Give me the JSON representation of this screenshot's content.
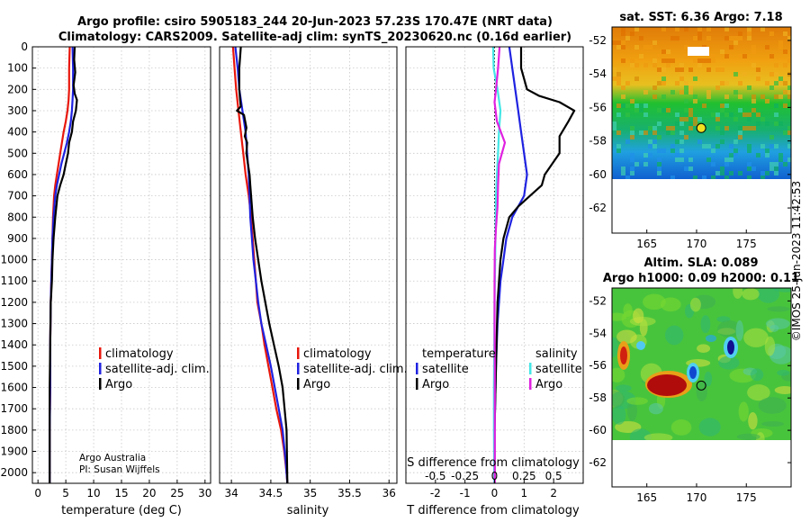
{
  "title": {
    "line1": "Argo profile: csiro 5905183_244 20-Jun-2023 57.23S 170.47E (NRT data)",
    "line2": "Climatology: CARS2009. Satellite-adj clim: synTS_20230620.nc (0.16d earlier)"
  },
  "credits": {
    "line1": "Argo Australia",
    "line2": "PI: Susan Wijffels",
    "stamp": "©IMOS 25-Jun-2023 11:42:53"
  },
  "colors": {
    "climatology": "#e8170c",
    "satellite": "#1f22e0",
    "argo": "#000000",
    "sat_salinity": "#44e6e6",
    "argo_salinity": "#e020e0"
  },
  "chart_data": [
    {
      "type": "line",
      "panel": "temperature",
      "xlabel": "temperature (deg C)",
      "xlim": [
        -1,
        31
      ],
      "ylim": [
        0,
        2050
      ],
      "y_axis": "depth, increasing downward",
      "xticks": [
        "0",
        "5",
        "10",
        "15",
        "20",
        "25",
        "30"
      ],
      "xtick_values": [
        0,
        5,
        10,
        15,
        20,
        25,
        30
      ],
      "yticks": [
        "0",
        "100",
        "200",
        "300",
        "400",
        "500",
        "600",
        "700",
        "800",
        "900",
        "1000",
        "1100",
        "1200",
        "1300",
        "1400",
        "1500",
        "1600",
        "1700",
        "1800",
        "1900",
        "2000"
      ],
      "ytick_values": [
        0,
        100,
        200,
        300,
        400,
        500,
        600,
        700,
        800,
        900,
        1000,
        1100,
        1200,
        1300,
        1400,
        1500,
        1600,
        1700,
        1800,
        1900,
        2000
      ],
      "grid": true,
      "legend": [
        "climatology",
        "satellite-adj. clim.",
        "Argo"
      ],
      "series": [
        {
          "name": "climatology",
          "color": "#e8170c",
          "x": [
            5.7,
            5.6,
            5.6,
            5.5,
            5.3,
            5.0,
            4.6,
            4.3,
            4.0,
            3.7,
            3.4,
            3.1,
            2.9,
            2.7,
            2.6,
            2.5,
            2.4,
            2.3,
            2.2,
            2.2,
            2.1,
            2.1,
            2.1
          ],
          "y": [
            0,
            100,
            200,
            250,
            300,
            350,
            400,
            450,
            500,
            550,
            600,
            650,
            700,
            800,
            900,
            1000,
            1100,
            1200,
            1400,
            1600,
            1800,
            1950,
            2050
          ]
        },
        {
          "name": "satellite-adj. clim.",
          "color": "#1f22e0",
          "x": [
            6.2,
            6.3,
            6.3,
            6.2,
            6.1,
            5.9,
            5.6,
            5.2,
            4.7,
            4.2,
            3.8,
            3.4,
            3.1,
            2.8,
            2.6,
            2.5,
            2.4,
            2.3,
            2.2,
            2.2,
            2.1,
            2.1,
            2.1
          ],
          "y": [
            0,
            100,
            200,
            250,
            300,
            350,
            400,
            450,
            500,
            550,
            600,
            650,
            700,
            800,
            900,
            1000,
            1100,
            1200,
            1400,
            1600,
            1800,
            1950,
            2050
          ]
        },
        {
          "name": "Argo",
          "color": "#000000",
          "x": [
            6.6,
            6.5,
            6.7,
            6.4,
            6.6,
            7.0,
            6.8,
            6.3,
            6.1,
            5.6,
            5.4,
            5.0,
            4.6,
            4.0,
            3.5,
            3.1,
            2.8,
            2.6,
            2.5,
            2.3,
            2.2,
            2.1,
            2.1,
            2.1,
            2.1
          ],
          "y": [
            0,
            60,
            120,
            180,
            220,
            250,
            300,
            350,
            400,
            450,
            500,
            550,
            600,
            650,
            700,
            800,
            900,
            1000,
            1100,
            1200,
            1400,
            1600,
            1800,
            1950,
            2050
          ]
        }
      ]
    },
    {
      "type": "line",
      "panel": "salinity",
      "xlabel": "salinity",
      "xlim": [
        33.85,
        36.1
      ],
      "ylim": [
        0,
        2050
      ],
      "y_axis": "depth, increasing downward",
      "xticks": [
        "34",
        "34.5",
        "35",
        "35.5",
        "36"
      ],
      "xtick_values": [
        34,
        34.5,
        35,
        35.5,
        36
      ],
      "grid": true,
      "legend": [
        "climatology",
        "satellite-adj. clim.",
        "Argo"
      ],
      "series": [
        {
          "name": "climatology",
          "color": "#e8170c",
          "x": [
            34.02,
            34.04,
            34.06,
            34.09,
            34.12,
            34.15,
            34.18,
            34.22,
            34.25,
            34.27,
            34.29,
            34.31,
            34.33,
            34.38,
            34.42,
            34.47,
            34.52,
            34.57,
            34.63,
            34.67,
            34.7,
            34.71
          ],
          "y": [
            0,
            100,
            200,
            300,
            400,
            500,
            600,
            700,
            800,
            900,
            1000,
            1100,
            1200,
            1300,
            1400,
            1500,
            1600,
            1700,
            1800,
            1900,
            2000,
            2050
          ]
        },
        {
          "name": "satellite-adj. clim.",
          "color": "#1f22e0",
          "x": [
            34.05,
            34.08,
            34.1,
            34.14,
            34.18,
            34.2,
            34.22,
            34.23,
            34.24,
            34.26,
            34.28,
            34.31,
            34.34,
            34.38,
            34.44,
            34.5,
            34.55,
            34.6,
            34.65,
            34.69,
            34.71
          ],
          "y": [
            0,
            100,
            200,
            300,
            400,
            500,
            600,
            700,
            800,
            900,
            1000,
            1100,
            1200,
            1300,
            1400,
            1500,
            1600,
            1700,
            1800,
            1950,
            2050
          ]
        },
        {
          "name": "Argo",
          "color": "#000000",
          "x": [
            34.12,
            34.1,
            34.1,
            34.11,
            34.12,
            34.07,
            34.16,
            34.19,
            34.17,
            34.2,
            34.19,
            34.21,
            34.23,
            34.24,
            34.25,
            34.27,
            34.3,
            34.34,
            34.38,
            34.43,
            34.48,
            34.54,
            34.6,
            34.65,
            34.7,
            34.71
          ],
          "y": [
            0,
            100,
            200,
            250,
            280,
            300,
            320,
            380,
            420,
            450,
            500,
            550,
            600,
            650,
            700,
            800,
            900,
            1000,
            1100,
            1200,
            1300,
            1400,
            1500,
            1600,
            1800,
            2050
          ]
        }
      ]
    },
    {
      "type": "line",
      "panel": "difference from climatology",
      "xlabel": "T difference from climatology",
      "xlabel_top": "S difference from climatology",
      "xlim": [
        -3,
        3
      ],
      "ylim": [
        0,
        2050
      ],
      "y_axis": "depth, increasing downward",
      "xticks": [
        "-2",
        "-1",
        "0",
        "1",
        "2"
      ],
      "xtick_values": [
        -2,
        -1,
        0,
        1,
        2
      ],
      "s_xticks": [
        "-0.5",
        "-0.25",
        "0",
        "0.25",
        "0.5"
      ],
      "grid": true,
      "zero_line": "dotted",
      "legend_groups": [
        {
          "heading": "temperature",
          "items": [
            "satellite",
            "Argo"
          ]
        },
        {
          "heading": "salinity",
          "items": [
            "satellite",
            "Argo"
          ]
        }
      ],
      "series": [
        {
          "name": "satellite",
          "group": "temperature",
          "color": "#1f22e0",
          "x": [
            0.5,
            0.6,
            0.7,
            0.8,
            0.9,
            1.0,
            1.1,
            1.0,
            0.6,
            0.4,
            0.3,
            0.2,
            0.1,
            0.05,
            0.0,
            0.0
          ],
          "y": [
            0,
            100,
            200,
            300,
            400,
            500,
            600,
            700,
            800,
            900,
            1000,
            1100,
            1300,
            1500,
            1800,
            2050
          ]
        },
        {
          "name": "Argo",
          "group": "temperature",
          "color": "#000000",
          "x": [
            0.9,
            0.9,
            1.1,
            1.5,
            2.2,
            2.7,
            2.5,
            2.2,
            2.2,
            1.7,
            1.6,
            1.2,
            0.8,
            0.5,
            0.3,
            0.2,
            0.1,
            0.05,
            0.0,
            0.0
          ],
          "y": [
            0,
            100,
            200,
            230,
            260,
            300,
            350,
            420,
            500,
            600,
            650,
            700,
            750,
            800,
            900,
            1000,
            1200,
            1500,
            1800,
            2050
          ]
        },
        {
          "name": "satellite",
          "group": "salinity",
          "color": "#44e6e6",
          "x": [
            -0.05,
            -0.03,
            0.1,
            0.2,
            0.15,
            0.12,
            0.08,
            0.05,
            0.04,
            0.03,
            0.02,
            0.0,
            -0.01,
            -0.02,
            -0.02,
            -0.01
          ],
          "y": [
            0,
            100,
            200,
            300,
            400,
            500,
            600,
            700,
            800,
            900,
            1000,
            1200,
            1400,
            1600,
            1800,
            2050
          ]
        },
        {
          "name": "Argo",
          "group": "salinity",
          "color": "#e020e0",
          "x": [
            0.17,
            0.12,
            0.05,
            0.0,
            0.08,
            0.35,
            0.15,
            0.12,
            0.1,
            0.05,
            0.01,
            0.0,
            0.0,
            0.01,
            0.01,
            0.01
          ],
          "y": [
            0,
            100,
            200,
            260,
            350,
            450,
            550,
            650,
            750,
            850,
            950,
            1100,
            1300,
            1500,
            1800,
            2050
          ]
        }
      ]
    },
    {
      "type": "heatmap",
      "panel": "map-sst",
      "title": "sat. SST: 6.36 Argo: 7.18",
      "xticks": [
        "165",
        "170",
        "175"
      ],
      "xtick_values": [
        165,
        170,
        175
      ],
      "yticks": [
        "-52",
        "-54",
        "-56",
        "-58",
        "-60",
        "-62"
      ],
      "ytick_values": [
        -52,
        -54,
        -56,
        -58,
        -60,
        -62
      ],
      "xlim": [
        161.5,
        179.5
      ],
      "ylim": [
        -63.5,
        -51.2
      ],
      "marker": {
        "lon": 170.47,
        "lat": -57.23
      }
    },
    {
      "type": "heatmap",
      "panel": "map-sla",
      "title_line1": "Altim. SLA: 0.089",
      "title_line2": "Argo h1000: 0.09 h2000: 0.11",
      "xticks": [
        "165",
        "170",
        "175"
      ],
      "xtick_values": [
        165,
        170,
        175
      ],
      "yticks": [
        "-52",
        "-54",
        "-56",
        "-58",
        "-60",
        "-62"
      ],
      "ytick_values": [
        -52,
        -54,
        -56,
        -58,
        -60,
        -62
      ],
      "xlim": [
        161.5,
        179.5
      ],
      "ylim": [
        -63.5,
        -51.2
      ],
      "marker": {
        "lon": 170.47,
        "lat": -57.23
      }
    }
  ]
}
